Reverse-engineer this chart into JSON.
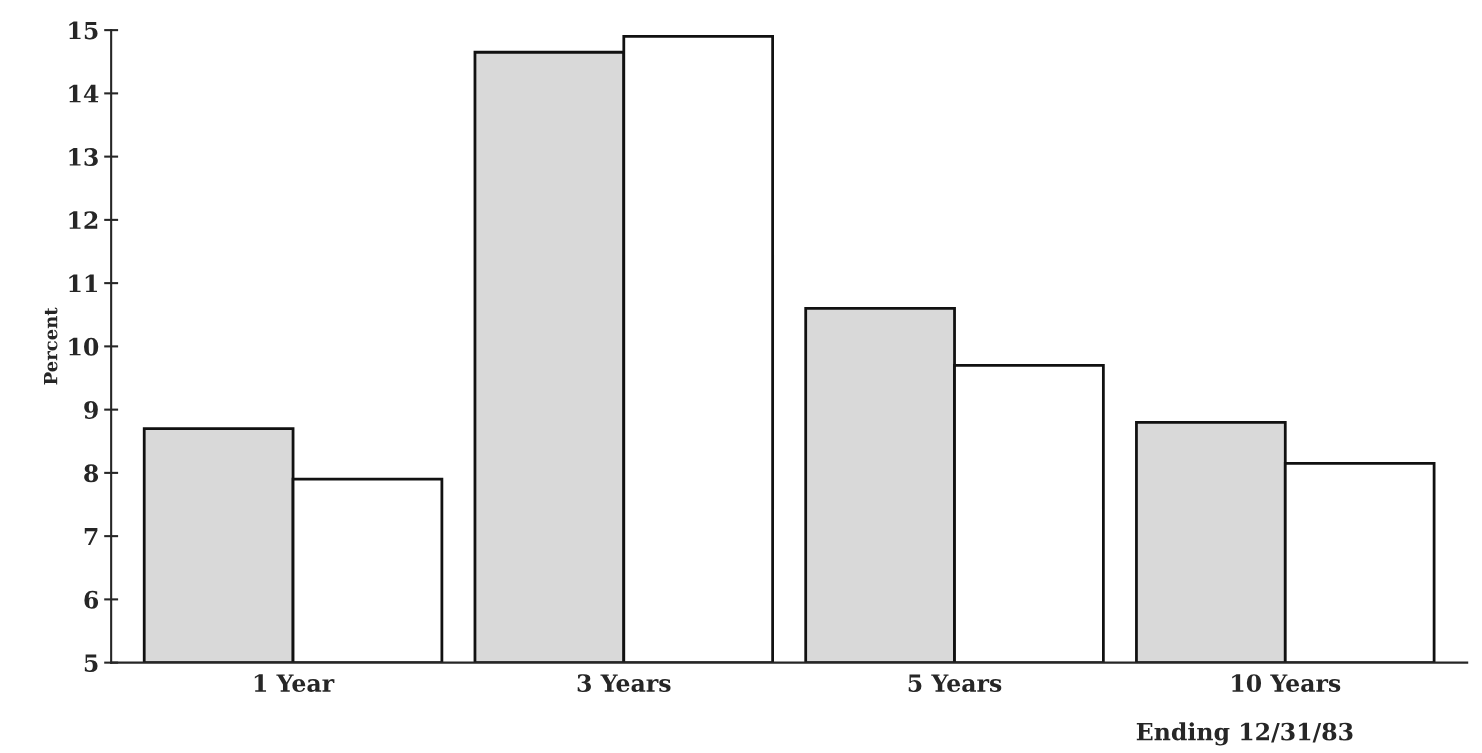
{
  "chart_data": {
    "type": "bar",
    "ylabel": "Percent",
    "categories": [
      "1 Year",
      "3 Years",
      "5 Years",
      "10 Years"
    ],
    "series": [
      {
        "color": "#d9d9d9",
        "values": [
          8.7,
          14.65,
          10.6,
          8.8
        ]
      },
      {
        "color": "#ffffff",
        "values": [
          7.9,
          14.9,
          9.7,
          8.15
        ]
      }
    ],
    "ylim": [
      5,
      15
    ],
    "yticks": [
      5,
      6,
      7,
      8,
      9,
      10,
      11,
      12,
      13,
      14,
      15
    ],
    "annotations": [
      "Ending 12/31/83"
    ],
    "grid": false
  }
}
